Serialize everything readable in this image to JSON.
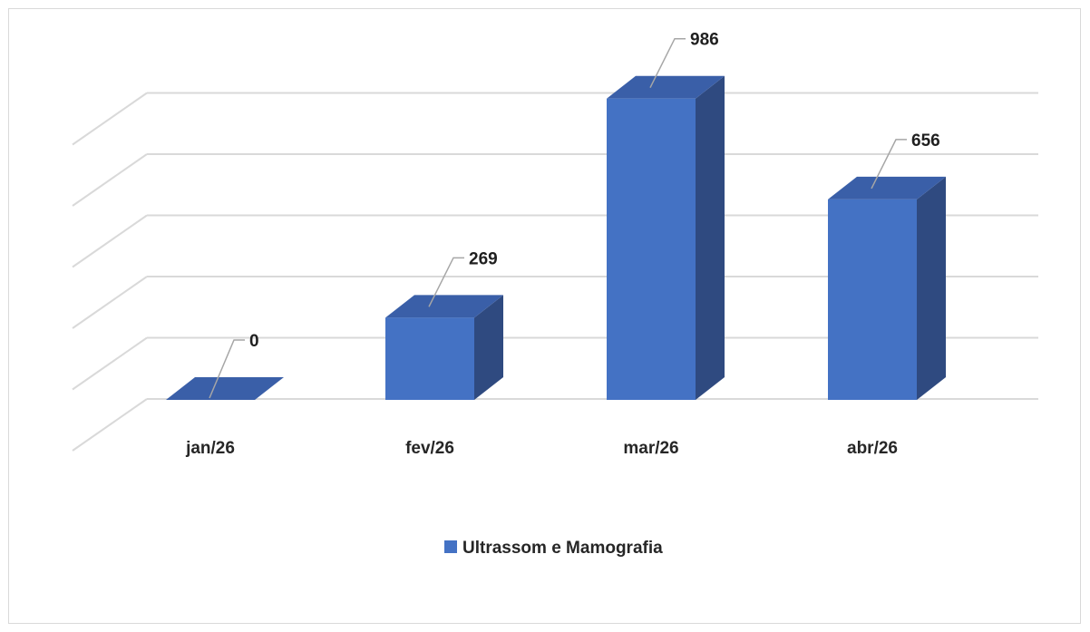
{
  "chart_data": {
    "type": "bar",
    "style": "3d-column",
    "categories": [
      "jan/26",
      "fev/26",
      "mar/26",
      "abr/26"
    ],
    "series": [
      {
        "name": "Ultrassom e Mamografia",
        "values": [
          0,
          269,
          986,
          656
        ],
        "color": "#4472C4"
      }
    ],
    "data_labels": [
      "0",
      "269",
      "986",
      "656"
    ],
    "ylim": [
      0,
      1000
    ],
    "grid": true,
    "y_axis_labels_visible": false,
    "legend_position": "bottom",
    "colors": {
      "front": "#4472C4",
      "top": "#3A5FA8",
      "side": "#2F4A80",
      "grid": "#d9d9d9",
      "leader": "#a6a6a6"
    }
  }
}
